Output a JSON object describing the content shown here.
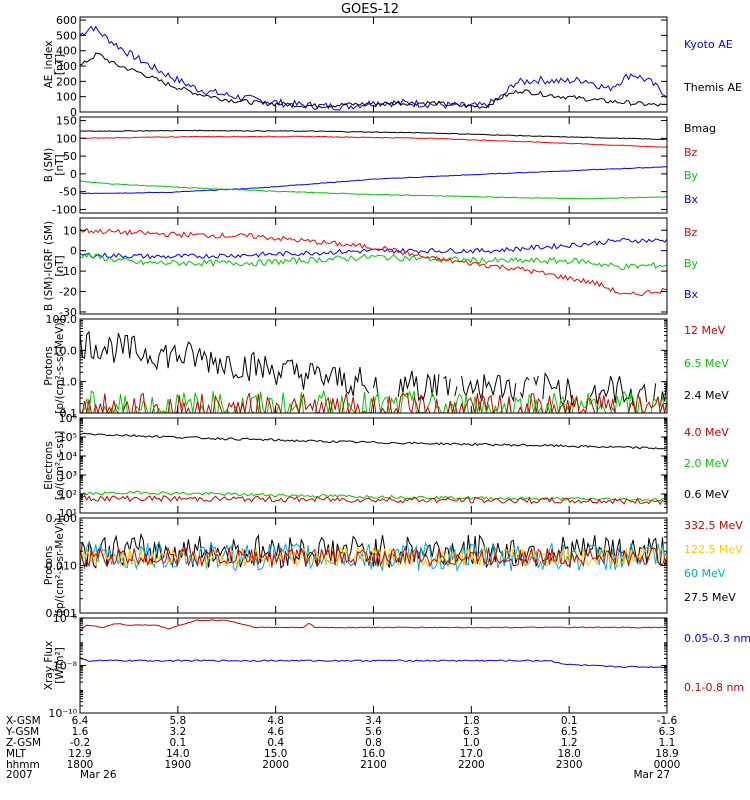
{
  "title": "GOES-12",
  "chart_data": [
    {
      "id": "ae",
      "type": "line",
      "ylabel_lines": [
        "AE_index",
        "[nT]"
      ],
      "scale": "linear",
      "ylim": [
        0,
        620
      ],
      "ticks": [
        {
          "v": 0,
          "label": "0"
        },
        {
          "v": 100,
          "label": "100"
        },
        {
          "v": 200,
          "label": "200"
        },
        {
          "v": 300,
          "label": "300"
        },
        {
          "v": 400,
          "label": "400"
        },
        {
          "v": 500,
          "label": "500"
        },
        {
          "v": 600,
          "label": "600"
        }
      ],
      "series": [
        {
          "name": "Kyoto AE",
          "color": "#0000ff",
          "noise": 25,
          "points": [
            [
              0,
              500
            ],
            [
              0.02,
              560
            ],
            [
              0.05,
              470
            ],
            [
              0.08,
              390
            ],
            [
              0.12,
              300
            ],
            [
              0.16,
              220
            ],
            [
              0.2,
              150
            ],
            [
              0.25,
              110
            ],
            [
              0.3,
              80
            ],
            [
              0.35,
              55
            ],
            [
              0.4,
              40
            ],
            [
              0.45,
              35
            ],
            [
              0.5,
              60
            ],
            [
              0.55,
              60
            ],
            [
              0.6,
              50
            ],
            [
              0.65,
              40
            ],
            [
              0.69,
              40
            ],
            [
              0.72,
              100
            ],
            [
              0.74,
              190
            ],
            [
              0.78,
              210
            ],
            [
              0.82,
              200
            ],
            [
              0.86,
              210
            ],
            [
              0.9,
              150
            ],
            [
              0.94,
              250
            ],
            [
              0.97,
              200
            ],
            [
              1,
              110
            ]
          ]
        },
        {
          "name": "Themis AE",
          "color": "#000000",
          "noise": 15,
          "points": [
            [
              0,
              300
            ],
            [
              0.03,
              380
            ],
            [
              0.06,
              310
            ],
            [
              0.1,
              260
            ],
            [
              0.15,
              180
            ],
            [
              0.2,
              120
            ],
            [
              0.25,
              80
            ],
            [
              0.3,
              60
            ],
            [
              0.35,
              50
            ],
            [
              0.4,
              40
            ],
            [
              0.5,
              55
            ],
            [
              0.6,
              60
            ],
            [
              0.65,
              40
            ],
            [
              0.69,
              35
            ],
            [
              0.72,
              100
            ],
            [
              0.75,
              140
            ],
            [
              0.8,
              110
            ],
            [
              0.85,
              90
            ],
            [
              0.9,
              70
            ],
            [
              0.95,
              55
            ],
            [
              1,
              40
            ]
          ]
        }
      ]
    },
    {
      "id": "bsm",
      "type": "line",
      "ylabel_lines": [
        "B (SM)",
        "[nT]"
      ],
      "scale": "linear",
      "ylim": [
        -110,
        160
      ],
      "ticks": [
        {
          "v": -100,
          "label": "-100"
        },
        {
          "v": -50,
          "label": "-50"
        },
        {
          "v": 0,
          "label": "0"
        },
        {
          "v": 50,
          "label": "50"
        },
        {
          "v": 100,
          "label": "100"
        },
        {
          "v": 150,
          "label": "150"
        }
      ],
      "series": [
        {
          "name": "Bx",
          "color": "#0000ff",
          "noise": 1,
          "points": [
            [
              0,
              -55
            ],
            [
              0.15,
              -52
            ],
            [
              0.3,
              -40
            ],
            [
              0.5,
              -15
            ],
            [
              0.7,
              0
            ],
            [
              0.85,
              10
            ],
            [
              1,
              20
            ]
          ]
        },
        {
          "name": "By",
          "color": "#00c800",
          "noise": 1,
          "points": [
            [
              0,
              -20
            ],
            [
              0.05,
              -28
            ],
            [
              0.2,
              -40
            ],
            [
              0.35,
              -50
            ],
            [
              0.5,
              -58
            ],
            [
              0.7,
              -65
            ],
            [
              0.85,
              -70
            ],
            [
              1,
              -65
            ]
          ]
        },
        {
          "name": "Bz",
          "color": "#ff0000",
          "noise": 1,
          "points": [
            [
              0,
              100
            ],
            [
              0.2,
              105
            ],
            [
              0.4,
              105
            ],
            [
              0.6,
              100
            ],
            [
              0.8,
              88
            ],
            [
              1,
              75
            ]
          ]
        },
        {
          "name": "Bmag",
          "color": "#000000",
          "noise": 1,
          "points": [
            [
              0,
              120
            ],
            [
              0.2,
              122
            ],
            [
              0.4,
              120
            ],
            [
              0.6,
              115
            ],
            [
              0.8,
              105
            ],
            [
              1,
              97
            ]
          ]
        }
      ]
    },
    {
      "id": "bdiff",
      "type": "line",
      "ylabel_lines": [
        "B (SM)-IGRF (SM)",
        "[nT]"
      ],
      "scale": "linear",
      "ylim": [
        -31,
        16
      ],
      "ticks": [
        {
          "v": -30,
          "label": "-30"
        },
        {
          "v": -20,
          "label": "-20"
        },
        {
          "v": -10,
          "label": "-10"
        },
        {
          "v": 0,
          "label": "0"
        },
        {
          "v": 10,
          "label": "10"
        }
      ],
      "series": [
        {
          "name": "Bx",
          "color": "#0000ff",
          "noise": 1.2,
          "points": [
            [
              0,
              -2
            ],
            [
              0.15,
              -3
            ],
            [
              0.3,
              -2
            ],
            [
              0.5,
              0
            ],
            [
              0.7,
              0
            ],
            [
              0.85,
              3
            ],
            [
              0.92,
              5
            ],
            [
              1,
              5
            ]
          ]
        },
        {
          "name": "By",
          "color": "#00c800",
          "noise": 1.5,
          "points": [
            [
              0,
              -2
            ],
            [
              0.1,
              -6
            ],
            [
              0.3,
              -6
            ],
            [
              0.5,
              -3
            ],
            [
              0.7,
              -5
            ],
            [
              0.85,
              -5
            ],
            [
              0.92,
              -8
            ],
            [
              1,
              -7
            ]
          ]
        },
        {
          "name": "Bz",
          "color": "#ff0000",
          "noise": 1.3,
          "points": [
            [
              0,
              10
            ],
            [
              0.15,
              8
            ],
            [
              0.3,
              7
            ],
            [
              0.45,
              3
            ],
            [
              0.52,
              1
            ],
            [
              0.6,
              -4
            ],
            [
              0.75,
              -9
            ],
            [
              0.88,
              -16
            ],
            [
              0.93,
              -22
            ],
            [
              1,
              -19
            ]
          ]
        }
      ]
    },
    {
      "id": "protons_low",
      "type": "line",
      "ylabel_lines": [
        "Protons",
        "[p/(cm²-s-sr-MeV)]"
      ],
      "scale": "log",
      "ylim": [
        0.1,
        100
      ],
      "ticks": [
        {
          "v": 0.1,
          "label": "0.1"
        },
        {
          "v": 1,
          "label": "1.0"
        },
        {
          "v": 10,
          "label": "10.0"
        },
        {
          "v": 100,
          "label": "100.0"
        }
      ],
      "series": [
        {
          "name": "2.4 MeV",
          "color": "#000000",
          "noise": 0.5,
          "gap_after": 0.48,
          "points": [
            [
              0,
              18
            ],
            [
              0.1,
              9
            ],
            [
              0.2,
              6
            ],
            [
              0.3,
              3
            ],
            [
              0.4,
              1.5
            ],
            [
              0.5,
              0.8
            ],
            [
              0.7,
              0.7
            ],
            [
              0.9,
              0.5
            ],
            [
              1,
              0.5
            ]
          ]
        },
        {
          "name": "6.5 MeV",
          "color": "#00c800",
          "noise": 0.6,
          "points": [
            [
              0,
              0.13
            ],
            [
              0.5,
              0.13
            ],
            [
              1,
              0.13
            ]
          ]
        },
        {
          "name": "12 MeV",
          "color": "#cc0000",
          "noise": 0.6,
          "points": [
            [
              0,
              0.11
            ],
            [
              0.5,
              0.11
            ],
            [
              1,
              0.11
            ]
          ]
        }
      ]
    },
    {
      "id": "electrons",
      "type": "line",
      "ylabel_lines": [
        "Electrons",
        "[e/(cm²-s-sr)]"
      ],
      "scale": "log",
      "ylim": [
        10,
        1000000
      ],
      "ticks": [
        {
          "v": 10,
          "label": "10¹"
        },
        {
          "v": 100,
          "label": "10²"
        },
        {
          "v": 1000,
          "label": "10³"
        },
        {
          "v": 10000,
          "label": "10⁴"
        },
        {
          "v": 100000,
          "label": "10⁵"
        },
        {
          "v": 1000000,
          "label": "10⁶"
        }
      ],
      "series": [
        {
          "name": "0.6 MeV",
          "color": "#000000",
          "noise": 0.06,
          "points": [
            [
              0,
              150000
            ],
            [
              0.2,
              90000
            ],
            [
              0.4,
              60000
            ],
            [
              0.6,
              45000
            ],
            [
              0.8,
              35000
            ],
            [
              1,
              25000
            ]
          ]
        },
        {
          "name": "2.0 MeV",
          "color": "#00c800",
          "noise": 0.08,
          "points": [
            [
              0,
              100
            ],
            [
              0.1,
              120
            ],
            [
              0.4,
              80
            ],
            [
              0.7,
              60
            ],
            [
              1,
              50
            ]
          ]
        },
        {
          "name": "4.0 MeV",
          "color": "#cc0000",
          "noise": 0.15,
          "points": [
            [
              0,
              60
            ],
            [
              0.5,
              50
            ],
            [
              1,
              40
            ]
          ]
        }
      ]
    },
    {
      "id": "protons_high",
      "type": "line",
      "ylabel_lines": [
        "Protons",
        "[p/(cm²-s-sr-MeV)]"
      ],
      "scale": "log",
      "ylim": [
        0.001,
        0.1
      ],
      "ticks": [
        {
          "v": 0.001,
          "label": "0.001"
        },
        {
          "v": 0.01,
          "label": "0.010"
        },
        {
          "v": 0.1,
          "label": "0.100"
        }
      ],
      "series": [
        {
          "name": "27.5 MeV",
          "color": "#000000",
          "noise": 0.35,
          "points": [
            [
              0,
              0.02
            ],
            [
              0.5,
              0.02
            ],
            [
              1,
              0.02
            ]
          ]
        },
        {
          "name": "60 MeV",
          "color": "#00aadd",
          "noise": 0.3,
          "points": [
            [
              0,
              0.016
            ],
            [
              0.5,
              0.015
            ],
            [
              1,
              0.015
            ]
          ]
        },
        {
          "name": "122.5 MeV",
          "color": "#ffc800",
          "noise": 0.2,
          "points": [
            [
              0,
              0.015
            ],
            [
              1,
              0.015
            ]
          ]
        },
        {
          "name": "332.5 MeV",
          "color": "#cc0000",
          "noise": 0.2,
          "points": [
            [
              0,
              0.015
            ],
            [
              1,
              0.015
            ]
          ]
        }
      ]
    },
    {
      "id": "xray",
      "type": "line",
      "ylabel_lines": [
        "Xray Flux",
        "[W/m²]"
      ],
      "scale": "log",
      "ylim": [
        1e-10,
        1e-06
      ],
      "ticks": [
        {
          "v": 1e-10,
          "label": "10⁻¹⁰"
        },
        {
          "v": 1e-08,
          "label": "10⁻⁸"
        },
        {
          "v": 1e-06,
          "label": "10⁻⁶"
        }
      ],
      "series": [
        {
          "name": "0.1-0.8 nm",
          "color": "#cc0000",
          "noise": 0.02,
          "points": [
            [
              0,
              3e-07
            ],
            [
              0.01,
              5e-07
            ],
            [
              0.04,
              4e-07
            ],
            [
              0.06,
              6e-07
            ],
            [
              0.08,
              5e-07
            ],
            [
              0.13,
              5e-07
            ],
            [
              0.15,
              3.5e-07
            ],
            [
              0.17,
              5e-07
            ],
            [
              0.2,
              8e-07
            ],
            [
              0.25,
              8e-07
            ],
            [
              0.27,
              6e-07
            ],
            [
              0.3,
              4e-07
            ],
            [
              0.38,
              4e-07
            ],
            [
              0.39,
              6e-07
            ],
            [
              0.4,
              4e-07
            ],
            [
              1,
              4e-07
            ]
          ]
        },
        {
          "name": "0.05-0.3 nm",
          "color": "#0000ff",
          "noise": 0.03,
          "points": [
            [
              0,
              2.2e-08
            ],
            [
              0.01,
              1.6e-08
            ],
            [
              0.8,
              1.6e-08
            ],
            [
              0.83,
              1.1e-08
            ],
            [
              0.9,
              9e-09
            ],
            [
              1,
              8.5e-09
            ]
          ]
        }
      ]
    }
  ],
  "x_axis": {
    "range": [
      "1800",
      "0000"
    ],
    "row_labels": [
      "X-GSM",
      "Y-GSM",
      "Z-GSM",
      "MLT",
      "hhmm",
      "2007"
    ],
    "columns": [
      [
        "6.4",
        "1.6",
        "-0.2",
        "12.9",
        "1800",
        "Mar 26"
      ],
      [
        "5.8",
        "3.2",
        "0.1",
        "14.0",
        "1900",
        ""
      ],
      [
        "4.8",
        "4.6",
        "0.4",
        "15.0",
        "2000",
        ""
      ],
      [
        "3.4",
        "5.6",
        "0.8",
        "16.0",
        "2100",
        ""
      ],
      [
        "1.8",
        "6.3",
        "1.0",
        "17.0",
        "2200",
        ""
      ],
      [
        "0.1",
        "6.5",
        "1.2",
        "18.0",
        "2300",
        ""
      ],
      [
        "-1.6",
        "6.3",
        "1.1",
        "18.9",
        "0000",
        "Mar 27"
      ]
    ]
  }
}
